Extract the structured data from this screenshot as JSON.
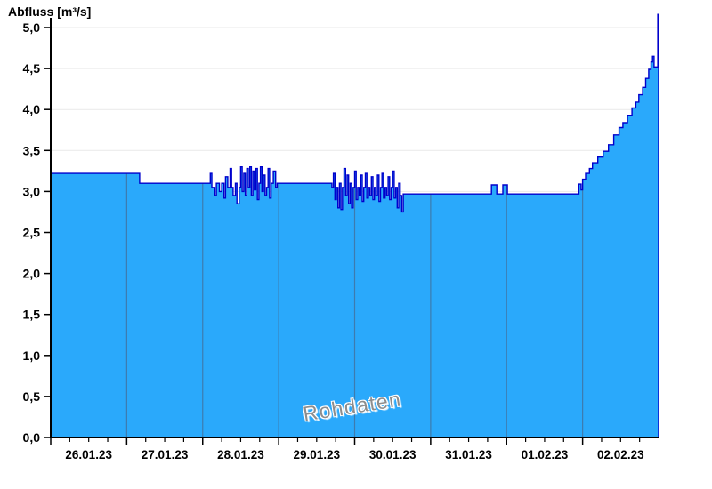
{
  "chart_data": {
    "type": "area",
    "title": "Abfluss [m³/s]",
    "xlabel": "",
    "ylabel": "Abfluss [m³/s]",
    "ylim": [
      0,
      5
    ],
    "ytick_step": 0.5,
    "ytick_values": [
      0,
      0.5,
      1,
      1.5,
      2,
      2.5,
      3,
      3.5,
      4,
      4.5,
      5
    ],
    "ytick_labels": [
      "0,0",
      "0,5",
      "1,0",
      "1,5",
      "2,0",
      "2,5",
      "3,0",
      "3,5",
      "4,0",
      "4,5",
      "5,0"
    ],
    "x_day_labels": [
      "26.01.23",
      "27.01.23",
      "28.01.23",
      "29.01.23",
      "30.01.23",
      "31.01.23",
      "01.02.23",
      "02.02.23"
    ],
    "x_days_total": 8,
    "x_minor_tick_fraction": 0.25,
    "grid": {
      "horizontal": true,
      "vertical_day_lines_inside_fill": true
    },
    "legend": "none",
    "annotations": [
      {
        "text": "Rohdaten",
        "style": "watermark"
      }
    ],
    "series_name": "Abfluss Rohdaten",
    "series_steps_unit": "[days_since_26.01.23_00:00, m3_per_s]",
    "series_steps": [
      [
        0,
        3.22
      ],
      [
        1.17,
        3.1
      ],
      [
        2.1,
        3.22
      ],
      [
        2.12,
        3.05
      ],
      [
        2.16,
        2.95
      ],
      [
        2.18,
        3.1
      ],
      [
        2.22,
        3.0
      ],
      [
        2.25,
        3.1
      ],
      [
        2.28,
        2.92
      ],
      [
        2.3,
        3.18
      ],
      [
        2.33,
        3.05
      ],
      [
        2.36,
        3.28
      ],
      [
        2.38,
        3.05
      ],
      [
        2.4,
        2.95
      ],
      [
        2.43,
        3.1
      ],
      [
        2.45,
        2.85
      ],
      [
        2.48,
        3.05
      ],
      [
        2.5,
        3.3
      ],
      [
        2.52,
        3.0
      ],
      [
        2.54,
        3.22
      ],
      [
        2.56,
        2.95
      ],
      [
        2.58,
        3.28
      ],
      [
        2.6,
        3.05
      ],
      [
        2.62,
        3.3
      ],
      [
        2.64,
        2.95
      ],
      [
        2.66,
        3.25
      ],
      [
        2.68,
        3.02
      ],
      [
        2.7,
        3.28
      ],
      [
        2.72,
        2.9
      ],
      [
        2.74,
        3.1
      ],
      [
        2.76,
        3.3
      ],
      [
        2.78,
        3.0
      ],
      [
        2.8,
        3.2
      ],
      [
        2.82,
        2.95
      ],
      [
        2.84,
        3.05
      ],
      [
        2.86,
        3.28
      ],
      [
        2.88,
        2.92
      ],
      [
        2.9,
        3.1
      ],
      [
        2.93,
        3.25
      ],
      [
        2.96,
        3.05
      ],
      [
        2.98,
        3.1
      ],
      [
        3.7,
        3.05
      ],
      [
        3.72,
        3.22
      ],
      [
        3.74,
        2.9
      ],
      [
        3.76,
        3.05
      ],
      [
        3.78,
        2.8
      ],
      [
        3.8,
        3.1
      ],
      [
        3.82,
        2.78
      ],
      [
        3.84,
        3.05
      ],
      [
        3.86,
        3.28
      ],
      [
        3.88,
        2.95
      ],
      [
        3.9,
        3.2
      ],
      [
        3.92,
        2.85
      ],
      [
        3.94,
        3.1
      ],
      [
        3.96,
        2.8
      ],
      [
        3.98,
        3.05
      ],
      [
        4.0,
        3.25
      ],
      [
        4.02,
        2.9
      ],
      [
        4.04,
        3.05
      ],
      [
        4.06,
        2.95
      ],
      [
        4.08,
        3.2
      ],
      [
        4.1,
        2.88
      ],
      [
        4.12,
        3.05
      ],
      [
        4.14,
        3.22
      ],
      [
        4.16,
        2.92
      ],
      [
        4.18,
        3.05
      ],
      [
        4.2,
        2.95
      ],
      [
        4.22,
        3.18
      ],
      [
        4.24,
        2.9
      ],
      [
        4.26,
        3.05
      ],
      [
        4.28,
        2.95
      ],
      [
        4.3,
        3.2
      ],
      [
        4.32,
        2.88
      ],
      [
        4.34,
        3.05
      ],
      [
        4.36,
        3.22
      ],
      [
        4.38,
        2.92
      ],
      [
        4.4,
        3.05
      ],
      [
        4.42,
        2.95
      ],
      [
        4.44,
        3.18
      ],
      [
        4.46,
        2.9
      ],
      [
        4.48,
        3.05
      ],
      [
        4.5,
        3.25
      ],
      [
        4.52,
        2.92
      ],
      [
        4.54,
        3.05
      ],
      [
        4.56,
        2.8
      ],
      [
        4.58,
        3.1
      ],
      [
        4.6,
        2.95
      ],
      [
        4.62,
        2.75
      ],
      [
        4.64,
        2.97
      ],
      [
        5.8,
        3.08
      ],
      [
        5.87,
        2.97
      ],
      [
        5.95,
        3.08
      ],
      [
        6.01,
        2.97
      ],
      [
        6.95,
        3.09
      ],
      [
        6.98,
        3.02
      ],
      [
        7.0,
        3.15
      ],
      [
        7.04,
        3.22
      ],
      [
        7.09,
        3.28
      ],
      [
        7.13,
        3.35
      ],
      [
        7.2,
        3.42
      ],
      [
        7.27,
        3.49
      ],
      [
        7.34,
        3.57
      ],
      [
        7.41,
        3.69
      ],
      [
        7.48,
        3.78
      ],
      [
        7.53,
        3.84
      ],
      [
        7.59,
        3.93
      ],
      [
        7.65,
        4.02
      ],
      [
        7.7,
        4.09
      ],
      [
        7.74,
        4.18
      ],
      [
        7.79,
        4.27
      ],
      [
        7.83,
        4.38
      ],
      [
        7.87,
        4.49
      ],
      [
        7.9,
        4.58
      ],
      [
        7.92,
        4.65
      ],
      [
        7.94,
        4.52
      ],
      [
        7.99,
        5.16
      ]
    ],
    "colors": {
      "fill": "#2AA9FB",
      "line": "#0000CC",
      "day_gridline": "#3D7BAE",
      "h_gridline": "#E9E9E9",
      "axis": "#000000",
      "watermark": "#8D8D8D",
      "background": "#FFFFFF"
    }
  }
}
